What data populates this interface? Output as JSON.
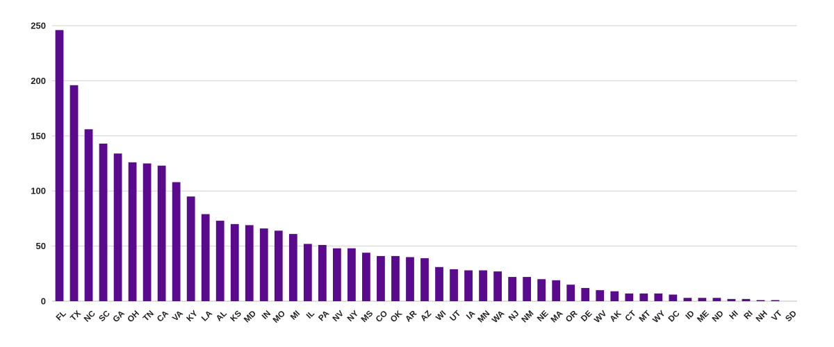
{
  "chart_data": {
    "type": "bar",
    "categories": [
      "FL",
      "TX",
      "NC",
      "SC",
      "GA",
      "OH",
      "TN",
      "CA",
      "VA",
      "KY",
      "LA",
      "AL",
      "KS",
      "MD",
      "IN",
      "MO",
      "MI",
      "IL",
      "PA",
      "NV",
      "NY",
      "MS",
      "CO",
      "OK",
      "AR",
      "AZ",
      "WI",
      "UT",
      "IA",
      "MN",
      "WA",
      "NJ",
      "NM",
      "NE",
      "MA",
      "OR",
      "DE",
      "WV",
      "AK",
      "CT",
      "MT",
      "WY",
      "DC",
      "ID",
      "ME",
      "ND",
      "HI",
      "RI",
      "NH",
      "VT",
      "SD"
    ],
    "values": [
      246,
      196,
      156,
      143,
      134,
      126,
      125,
      123,
      108,
      95,
      79,
      73,
      70,
      69,
      66,
      64,
      61,
      52,
      51,
      48,
      48,
      44,
      41,
      41,
      40,
      39,
      31,
      29,
      28,
      28,
      27,
      22,
      22,
      20,
      19,
      15,
      12,
      10,
      9,
      7,
      7,
      7,
      6,
      3,
      3,
      3,
      2,
      2,
      1,
      1,
      0
    ],
    "yticks": [
      0,
      50,
      100,
      150,
      200,
      250
    ],
    "ylim": [
      0,
      250
    ],
    "grid": true,
    "bar_color": "#5a0a8c",
    "title": "",
    "xlabel": "",
    "ylabel": ""
  }
}
